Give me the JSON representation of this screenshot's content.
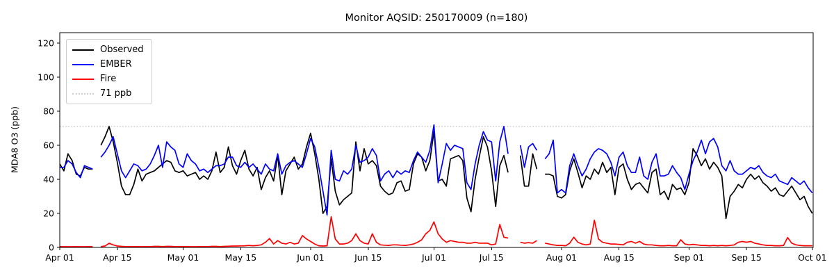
{
  "title": "Monitor AQSID: 250170009 (n=180)",
  "chart_data": {
    "type": "line",
    "title": "Monitor AQSID: 250170009 (n=180)",
    "monitor_aqsid": "250170009",
    "n_label": "n=180",
    "xlabel": "",
    "ylabel": "MDA8 O3 (ppb)",
    "ylim": [
      0,
      126
    ],
    "yticks": [
      0,
      20,
      40,
      60,
      80,
      100,
      120
    ],
    "grid": false,
    "legend_position": "upper left",
    "x_axis_note": "daily values, day index 0 = Apr 01",
    "x_ticks": [
      {
        "label": "Apr 01",
        "day": 0
      },
      {
        "label": "Apr 15",
        "day": 14
      },
      {
        "label": "May 01",
        "day": 30
      },
      {
        "label": "May 15",
        "day": 44
      },
      {
        "label": "Jun 01",
        "day": 61
      },
      {
        "label": "Jun 15",
        "day": 75
      },
      {
        "label": "Jul 01",
        "day": 91
      },
      {
        "label": "Jul 15",
        "day": 105
      },
      {
        "label": "Aug 01",
        "day": 122
      },
      {
        "label": "Aug 15",
        "day": 136
      },
      {
        "label": "Sep 01",
        "day": 153
      },
      {
        "label": "Sep 15",
        "day": 167
      },
      {
        "label": "Oct 01",
        "day": 183
      }
    ],
    "threshold": {
      "label": "71 ppb",
      "value": 71,
      "color": "#c9c9c9",
      "linestyle": "dotted"
    },
    "series": [
      {
        "name": "Observed",
        "color": "#000000",
        "values": [
          49,
          45,
          55,
          51,
          43,
          42,
          47,
          46,
          46,
          null,
          60,
          65,
          71,
          62,
          50,
          36,
          31,
          31,
          37,
          46,
          39,
          43,
          44,
          45,
          47,
          49,
          51,
          50,
          45,
          44,
          45,
          42,
          43,
          44,
          40,
          42,
          40,
          45,
          56,
          44,
          47,
          59,
          48,
          43,
          51,
          57,
          46,
          42,
          47,
          34,
          41,
          45,
          39,
          54,
          31,
          45,
          49,
          53,
          46,
          49,
          59,
          67,
          55,
          40,
          20,
          24,
          52,
          33,
          25,
          28,
          30,
          32,
          62,
          45,
          58,
          49,
          51,
          48,
          36,
          33,
          31,
          32,
          38,
          39,
          33,
          34,
          49,
          55,
          53,
          45,
          51,
          68,
          39,
          40,
          36,
          52,
          53,
          54,
          51,
          29,
          21,
          40,
          53,
          65,
          59,
          45,
          24,
          48,
          54,
          44,
          null,
          null,
          54,
          36,
          36,
          55,
          46,
          null,
          43,
          43,
          42,
          30,
          29,
          31,
          45,
          52,
          44,
          35,
          42,
          40,
          46,
          43,
          50,
          44,
          47,
          31,
          47,
          49,
          40,
          34,
          37,
          38,
          35,
          32,
          44,
          46,
          31,
          33,
          28,
          37,
          34,
          35,
          31,
          38,
          58,
          54,
          48,
          52,
          46,
          50,
          47,
          42,
          17,
          30,
          33,
          37,
          35,
          40,
          43,
          40,
          42,
          38,
          36,
          33,
          35,
          31,
          30,
          33,
          36,
          32,
          28,
          30,
          24,
          20
        ]
      },
      {
        "name": "EMBER",
        "color": "#0000ff",
        "values": [
          47,
          47,
          51,
          49,
          44,
          41,
          48,
          47,
          46,
          null,
          53,
          56,
          60,
          65,
          55,
          45,
          41,
          45,
          49,
          48,
          45,
          46,
          49,
          54,
          60,
          47,
          62,
          59,
          57,
          49,
          47,
          55,
          51,
          49,
          45,
          46,
          44,
          46,
          48,
          48,
          49,
          53,
          53,
          48,
          47,
          50,
          47,
          49,
          46,
          43,
          49,
          46,
          45,
          55,
          43,
          48,
          50,
          51,
          49,
          47,
          55,
          64,
          59,
          47,
          33,
          19,
          57,
          40,
          39,
          45,
          43,
          46,
          60,
          50,
          51,
          53,
          58,
          54,
          39,
          43,
          45,
          41,
          45,
          43,
          45,
          44,
          51,
          56,
          53,
          50,
          57,
          72,
          38,
          49,
          61,
          57,
          60,
          59,
          58,
          38,
          34,
          49,
          60,
          68,
          63,
          62,
          39,
          62,
          71,
          55,
          null,
          null,
          60,
          47,
          59,
          61,
          57,
          null,
          52,
          55,
          63,
          32,
          34,
          32,
          48,
          55,
          48,
          42,
          46,
          52,
          56,
          58,
          57,
          55,
          50,
          42,
          53,
          56,
          48,
          44,
          44,
          53,
          42,
          40,
          50,
          55,
          42,
          42,
          43,
          48,
          44,
          41,
          34,
          43,
          51,
          56,
          63,
          55,
          62,
          64,
          59,
          48,
          45,
          51,
          45,
          43,
          43,
          45,
          47,
          46,
          48,
          44,
          42,
          41,
          43,
          39,
          38,
          37,
          41,
          39,
          37,
          39,
          35,
          32
        ]
      },
      {
        "name": "Fire",
        "color": "#ff0000",
        "values": [
          0.5,
          0.4,
          0.4,
          0.4,
          0.5,
          0.4,
          0.4,
          0.5,
          0.4,
          null,
          0.5,
          0.8,
          2.4,
          1.5,
          0.8,
          0.6,
          0.5,
          0.5,
          0.5,
          0.5,
          0.4,
          0.5,
          0.5,
          0.6,
          0.6,
          0.5,
          0.6,
          0.6,
          0.5,
          0.5,
          0.5,
          0.5,
          0.4,
          0.4,
          0.5,
          0.5,
          0.5,
          0.6,
          0.6,
          0.5,
          0.6,
          0.7,
          0.8,
          0.8,
          0.9,
          1.0,
          1.2,
          1.0,
          1.2,
          1.5,
          3.0,
          5.2,
          2.0,
          4.0,
          2.5,
          2.0,
          3.0,
          2.0,
          2.5,
          7.0,
          5.0,
          3.5,
          2.0,
          1.0,
          0.8,
          1.0,
          18.0,
          5.0,
          2.0,
          2.0,
          2.5,
          4.0,
          8.0,
          4.0,
          2.5,
          2.0,
          8.0,
          3.0,
          1.5,
          1.3,
          1.2,
          1.5,
          1.5,
          1.3,
          1.2,
          1.5,
          2.0,
          3.0,
          4.5,
          8.0,
          10.0,
          15.0,
          8.0,
          5.0,
          3.0,
          4.0,
          3.5,
          3.0,
          3.0,
          2.5,
          2.5,
          3.0,
          2.5,
          2.5,
          2.5,
          1.5,
          2.0,
          13.5,
          6.0,
          5.5,
          null,
          null,
          3.0,
          2.5,
          2.8,
          2.5,
          4.0,
          null,
          2.5,
          2.0,
          1.5,
          1.2,
          1.2,
          1.0,
          2.5,
          6.0,
          3.0,
          2.0,
          1.5,
          2.0,
          16.0,
          5.0,
          3.0,
          2.5,
          2.0,
          2.0,
          1.8,
          1.5,
          3.0,
          3.5,
          2.5,
          3.5,
          2.0,
          1.5,
          1.5,
          1.2,
          1.0,
          1.0,
          1.2,
          1.0,
          1.0,
          4.5,
          2.0,
          1.5,
          1.8,
          1.5,
          1.2,
          1.2,
          1.0,
          1.2,
          1.0,
          1.2,
          1.0,
          1.2,
          1.5,
          3.0,
          3.5,
          3.0,
          3.5,
          2.5,
          2.0,
          1.5,
          1.2,
          1.2,
          1.0,
          1.0,
          1.2,
          5.8,
          2.5,
          1.5,
          1.2,
          1.0,
          1.0,
          1.0
        ]
      }
    ]
  }
}
